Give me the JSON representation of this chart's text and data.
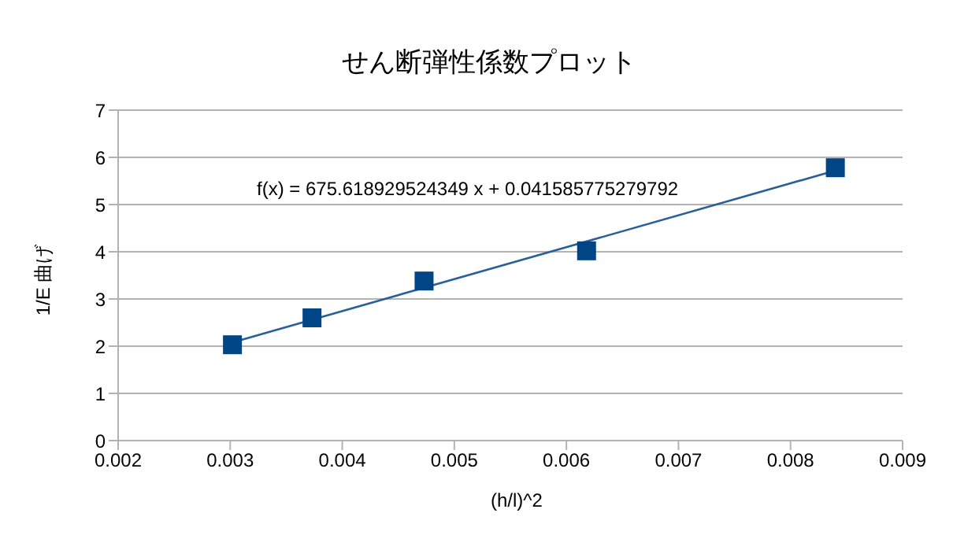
{
  "chart_data": {
    "type": "scatter",
    "title": "せん断弾性係数プロット",
    "xlabel": "(h/l)^2",
    "ylabel": "1/E 曲げ",
    "annotations": [
      "f(x) = 675.618929524349 x + 0.041585775279792"
    ],
    "x": [
      0.00302,
      0.00373,
      0.00473,
      0.00618,
      0.0084
    ],
    "series": [
      {
        "color": "#004586",
        "values": [
          2.03,
          2.6,
          3.38,
          4.02,
          5.78
        ],
        "marker": "square"
      },
      {
        "type": "line",
        "color": "#2a6099",
        "x": [
          0.00302,
          0.0084
        ],
        "values": [
          2.08,
          5.72
        ],
        "marker": "none"
      }
    ],
    "xlim": [
      0.002,
      0.009
    ],
    "xticks": [
      0.002,
      0.003,
      0.004,
      0.005,
      0.006,
      0.007,
      0.008,
      0.009
    ],
    "ylim": [
      0,
      7
    ],
    "yticks": [
      0,
      1,
      2,
      3,
      4,
      5,
      6,
      7
    ],
    "grid": "y"
  }
}
